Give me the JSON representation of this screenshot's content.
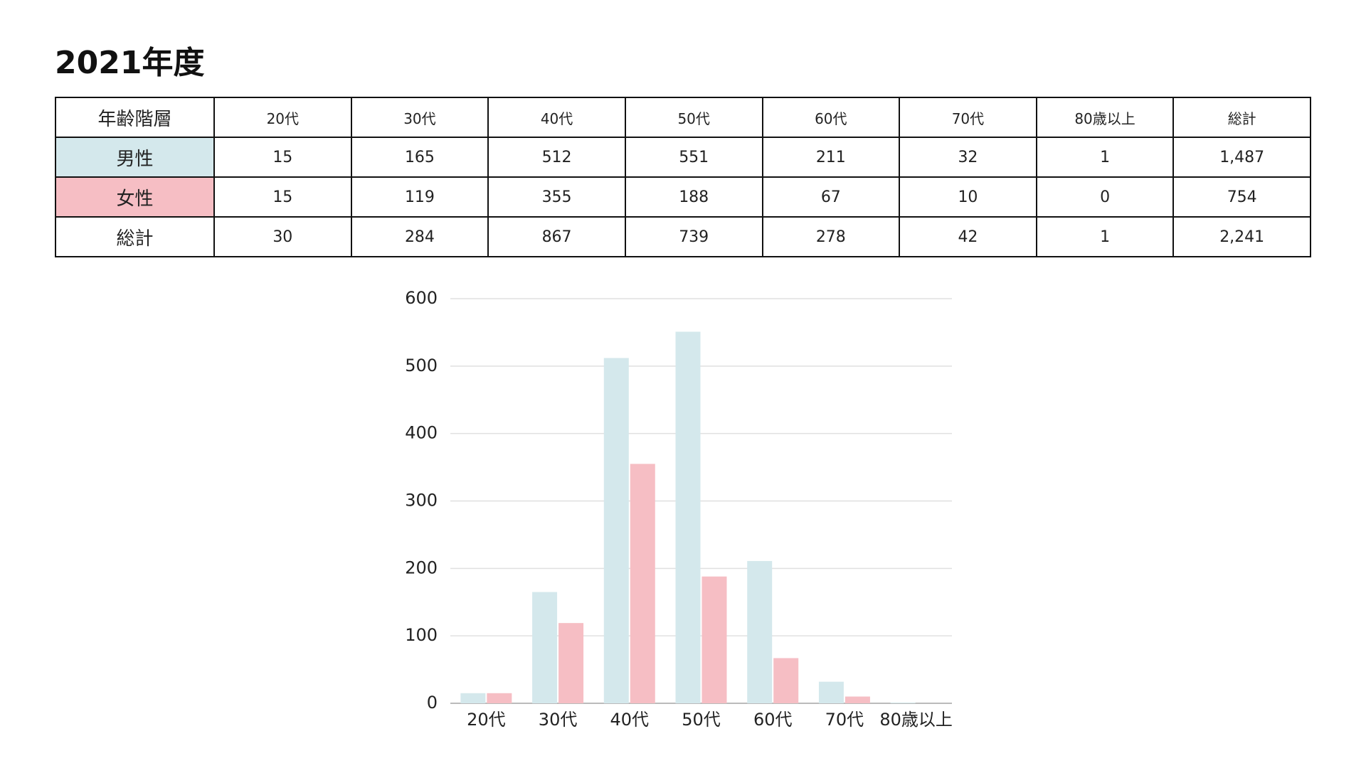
{
  "title": "2021年度",
  "table": {
    "header": [
      "年齢階層",
      "20代",
      "30代",
      "40代",
      "50代",
      "60代",
      "70代",
      "80歳以上",
      "総計"
    ],
    "rows": [
      [
        "男性",
        "15",
        "165",
        "512",
        "551",
        "211",
        "32",
        "1",
        "1,487"
      ],
      [
        "女性",
        "15",
        "119",
        "355",
        "188",
        "67",
        "10",
        "0",
        "754"
      ],
      [
        "総計",
        "30",
        "284",
        "867",
        "739",
        "278",
        "42",
        "1",
        "2,241"
      ]
    ],
    "row_colors": [
      "#d4e8ec",
      "#f6bec4",
      "#ffffff"
    ]
  },
  "chart_data": {
    "type": "bar",
    "categories": [
      "20代",
      "30代",
      "40代",
      "50代",
      "60代",
      "70代",
      "80歳以上"
    ],
    "series": [
      {
        "color": "#d4e8ec",
        "values": [
          15,
          165,
          512,
          551,
          211,
          32,
          1
        ]
      },
      {
        "color": "#f6bec4",
        "values": [
          15,
          119,
          355,
          188,
          67,
          10,
          0
        ]
      }
    ],
    "ylim": [
      0,
      600
    ],
    "yticks": [
      0,
      100,
      200,
      300,
      400,
      500,
      600
    ],
    "grid": true
  }
}
